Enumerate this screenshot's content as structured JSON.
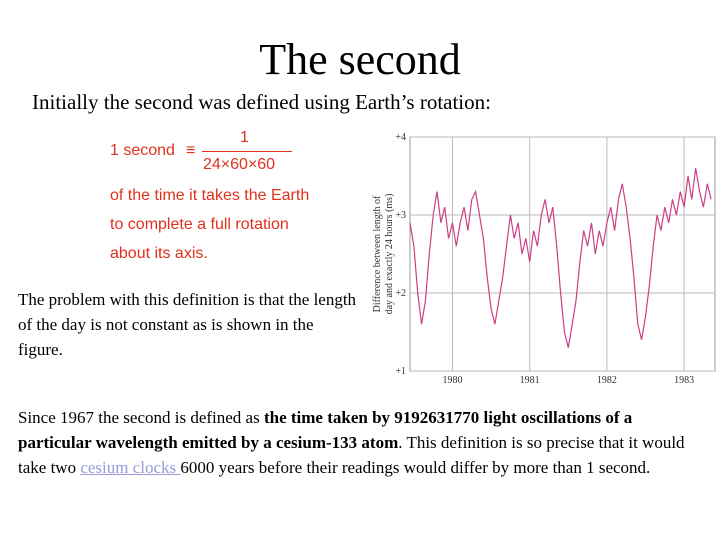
{
  "title": "The second",
  "intro": "Initially the second was defined using Earth’s rotation:",
  "formula": {
    "lhs": "1 second",
    "equiv": "≡",
    "numerator": "1",
    "denominator": "24×60×60",
    "lines": [
      "of the time it takes the Earth",
      "to complete a full rotation",
      "about its axis."
    ]
  },
  "problem": "The problem with this definition is that the length of the day is not constant as is shown in the figure.",
  "definition": [
    "Since 1967 the second is defined as ",
    "the time taken by 9192631770 light oscillations of a particular wavelength emitted by a cesium-133 atom",
    ".  This definition is so precise that it would take two ",
    "cesium clocks ",
    "6000 years before their readings would differ by more than 1 second."
  ],
  "figure": {
    "type": "line",
    "ylabel": [
      "Difference between length of",
      "day and exactly 24 hours (ms)"
    ],
    "color": "#cc3f86",
    "xlim": [
      1979.45,
      1983.4
    ],
    "xticks": [
      1980,
      1981,
      1982,
      1983
    ],
    "ylim": [
      1,
      4
    ],
    "yticks": [
      {
        "value": 1,
        "label": "+1"
      },
      {
        "value": 2,
        "label": "+2"
      },
      {
        "value": 3,
        "label": "+3"
      },
      {
        "value": 4,
        "label": "+4"
      }
    ],
    "grid": true,
    "x": [
      1979.45,
      1979.5,
      1979.55,
      1979.6,
      1979.65,
      1979.7,
      1979.75,
      1979.8,
      1979.85,
      1979.9,
      1979.95,
      1980,
      1980.05,
      1980.1,
      1980.15,
      1980.2,
      1980.25,
      1980.3,
      1980.35,
      1980.4,
      1980.45,
      1980.5,
      1980.55,
      1980.6,
      1980.65,
      1980.7,
      1980.75,
      1980.8,
      1980.85,
      1980.9,
      1980.95,
      1981,
      1981.05,
      1981.1,
      1981.15,
      1981.2,
      1981.25,
      1981.3,
      1981.35,
      1981.4,
      1981.45,
      1981.5,
      1981.55,
      1981.6,
      1981.65,
      1981.7,
      1981.75,
      1981.8,
      1981.85,
      1981.9,
      1981.95,
      1982,
      1982.05,
      1982.1,
      1982.15,
      1982.2,
      1982.25,
      1982.3,
      1982.35,
      1982.4,
      1982.45,
      1982.5,
      1982.55,
      1982.6,
      1982.65,
      1982.7,
      1982.75,
      1982.8,
      1982.85,
      1982.9,
      1982.95,
      1983,
      1983.05,
      1983.1,
      1983.15,
      1983.2,
      1983.25,
      1983.3,
      1983.35
    ],
    "values": [
      2.9,
      2.6,
      2.0,
      1.6,
      1.9,
      2.5,
      3.0,
      3.3,
      2.9,
      3.1,
      2.7,
      2.9,
      2.6,
      2.9,
      3.1,
      2.8,
      3.2,
      3.3,
      3.0,
      2.7,
      2.2,
      1.8,
      1.6,
      1.9,
      2.2,
      2.6,
      3.0,
      2.7,
      2.9,
      2.5,
      2.7,
      2.4,
      2.8,
      2.6,
      3.0,
      3.2,
      2.9,
      3.1,
      2.6,
      2.0,
      1.5,
      1.3,
      1.6,
      1.9,
      2.4,
      2.8,
      2.6,
      2.9,
      2.5,
      2.8,
      2.6,
      2.9,
      3.1,
      2.8,
      3.2,
      3.4,
      3.1,
      2.7,
      2.2,
      1.6,
      1.4,
      1.7,
      2.1,
      2.6,
      3.0,
      2.8,
      3.1,
      2.9,
      3.2,
      3.0,
      3.3,
      3.1,
      3.5,
      3.2,
      3.6,
      3.3,
      3.1,
      3.4,
      3.2
    ]
  }
}
